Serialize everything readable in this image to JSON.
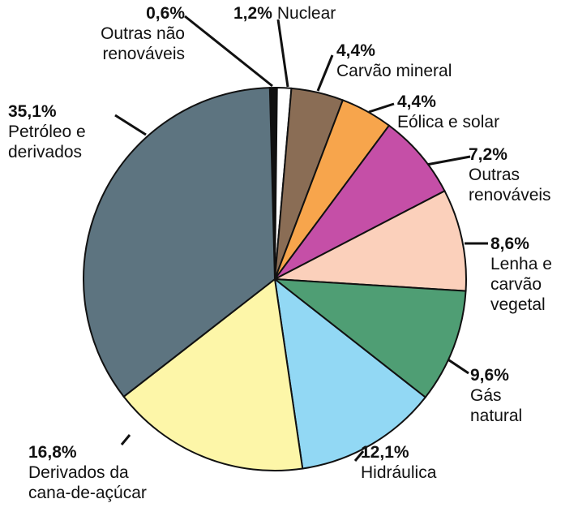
{
  "chart_data": {
    "type": "pie",
    "categories": [
      "Outras não\nrenováveis",
      "Nuclear",
      "Carvão mineral",
      "Eólica e solar",
      "Outras\nrenováveis",
      "Lenha e\ncarvão\nvegetal",
      "Gás\nnatural",
      "Hidráulica",
      "Derivados da\ncana-de-açúcar",
      "Petróleo e\nderivados"
    ],
    "values": [
      0.6,
      1.2,
      4.4,
      4.4,
      7.2,
      8.6,
      9.6,
      12.1,
      16.8,
      35.1
    ],
    "value_labels": [
      "0,6%",
      "1,2%",
      "4,4%",
      "4,4%",
      "7,2%",
      "8,6%",
      "9,6%",
      "12,1%",
      "16,8%",
      "35,1%"
    ],
    "colors": [
      "#111111",
      "#ffffff",
      "#8a6d55",
      "#f7a54c",
      "#c54fa7",
      "#fbd0bb",
      "#4f9e74",
      "#92d8f4",
      "#fdf6a8",
      "#5d7480"
    ]
  }
}
